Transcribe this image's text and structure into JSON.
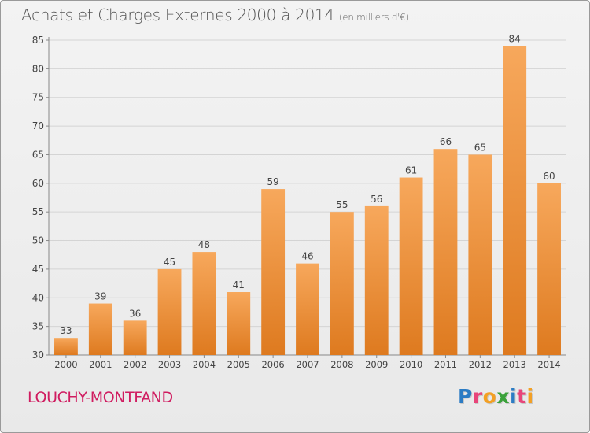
{
  "header": {
    "title": "Achats et Charges Externes 2000 à 2014",
    "unit": "(en milliers d'€)"
  },
  "footer": {
    "commune": "LOUCHY-MONTFAND",
    "brand": "Proxiti",
    "brand_colors": [
      "#2c7cc4",
      "#e8457a",
      "#f3a024",
      "#3aa13a",
      "#2c7cc4",
      "#e8457a",
      "#f3a024"
    ]
  },
  "colors": {
    "bar_light": "#f7a85c",
    "bar_dark": "#de7a1f",
    "grid": "#d4d4d4",
    "axis_text": "#444444",
    "commune": "#d01c60"
  },
  "chart_data": {
    "type": "bar",
    "title": "Achats et Charges Externes 2000 à 2014",
    "subtitle": "(en milliers d'€)",
    "categories": [
      "2000",
      "2001",
      "2002",
      "2003",
      "2004",
      "2005",
      "2006",
      "2007",
      "2008",
      "2009",
      "2010",
      "2011",
      "2012",
      "2013",
      "2014"
    ],
    "values": [
      33,
      39,
      36,
      45,
      48,
      41,
      59,
      46,
      55,
      56,
      61,
      66,
      65,
      84,
      60
    ],
    "ylim": [
      30,
      85
    ],
    "yticks": [
      30,
      35,
      40,
      45,
      50,
      55,
      60,
      65,
      70,
      75,
      80,
      85
    ],
    "grid": true,
    "data_labels": true,
    "legend": "none"
  }
}
